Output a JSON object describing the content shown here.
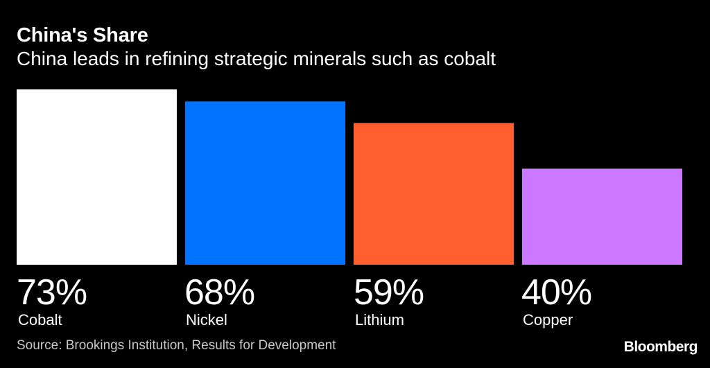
{
  "chart_data": {
    "type": "bar",
    "title": "China's Share",
    "subtitle": "China leads in refining strategic minerals such as cobalt",
    "categories": [
      "Cobalt",
      "Nickel",
      "Lithium",
      "Copper"
    ],
    "values": [
      73,
      68,
      59,
      40
    ],
    "value_labels": [
      "73%",
      "68%",
      "59%",
      "40%"
    ],
    "colors": [
      "#ffffff",
      "#0073ff",
      "#ff5f2e",
      "#cc77ff"
    ],
    "ylim": [
      0,
      73
    ],
    "xlabel": "",
    "ylabel": "",
    "grid": false,
    "legend": "none"
  },
  "footer": {
    "source": "Source: Brookings Institution, Results for Development",
    "logo": "Bloomberg"
  },
  "colors": {
    "background": "#000000",
    "text": "#ffffff",
    "source_text": "#c8c8c8"
  }
}
